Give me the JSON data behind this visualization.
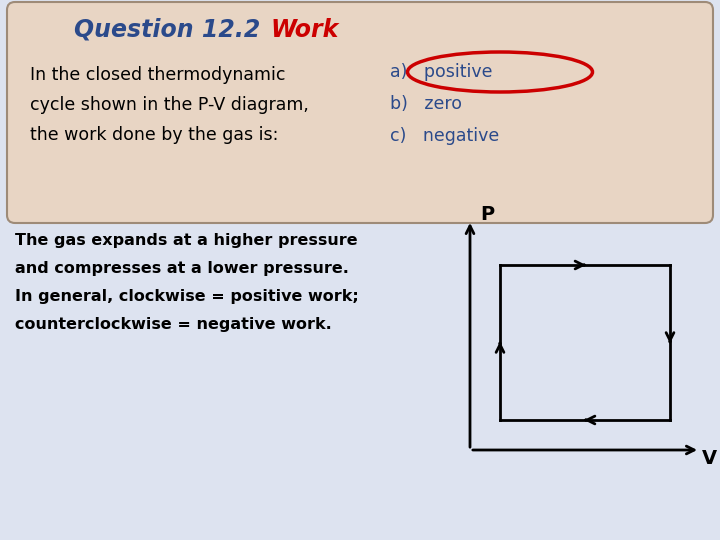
{
  "title_question": "Question 12.2",
  "title_work": "Work",
  "question_text_line1": "In the closed thermodynamic",
  "question_text_line2": "cycle shown in the P-V diagram,",
  "question_text_line3": "the work done by the gas is:",
  "answer_a": "a)   positive",
  "answer_b": "b)   zero",
  "answer_c": "c)   negative",
  "explanation_line1": "The gas expands at a higher pressure",
  "explanation_line2": "and compresses at a lower pressure.",
  "explanation_line3": "In general, clockwise = positive work;",
  "explanation_line4": "counterclockwise = negative work.",
  "top_box_bg": "#e8d5c4",
  "top_box_border": "#9e8b78",
  "bottom_box_bg": "#dde3f0",
  "page_bg": "#dde3f0",
  "title_question_color": "#2b4a8b",
  "title_work_color": "#cc0000",
  "question_text_color": "#000000",
  "answer_color": "#2b4a8b",
  "ellipse_color": "#cc0000",
  "explanation_text_color": "#000000",
  "diagram_color": "#000000",
  "bg_color": "#ffffff"
}
